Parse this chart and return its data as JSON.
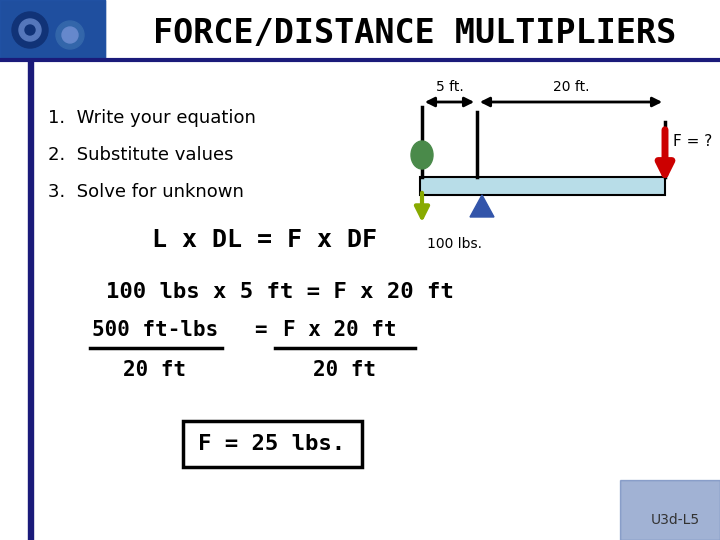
{
  "title": "FORCE/DISTANCE MULTIPLIERS",
  "title_fontsize": 24,
  "title_color": "#000000",
  "bg_color": "#ffffff",
  "header_bar_color": "#1a1a7a",
  "left_bar_color": "#1a1a7a",
  "step1": "1.  Write your equation",
  "step2": "2.  Substitute values",
  "step3": "3.  Solve for unknown",
  "equation1": "L x DL = F x DF",
  "equation2": "100 lbs x 5 ft = F x 20 ft",
  "eq3_num_left": "500 ft-lbs",
  "eq3_num_eq": "= F x 20 ft",
  "eq3_den_left": "20 ft",
  "eq3_den_right": "20 ft",
  "answer": "F = 25 lbs.",
  "label_5ft": "5 ft.",
  "label_20ft": "20 ft.",
  "label_100lbs": "100 lbs.",
  "label_F": "F = ?",
  "beam_color": "#b8dde8",
  "beam_edge_color": "#000000",
  "green_circle_color": "#4a8a4a",
  "blue_triangle_color": "#3355aa",
  "yellow_arrow_color": "#88aa00",
  "red_arrow_color": "#cc0000",
  "watermark": "U3d-L5",
  "header_photo_color": "#2255aa"
}
